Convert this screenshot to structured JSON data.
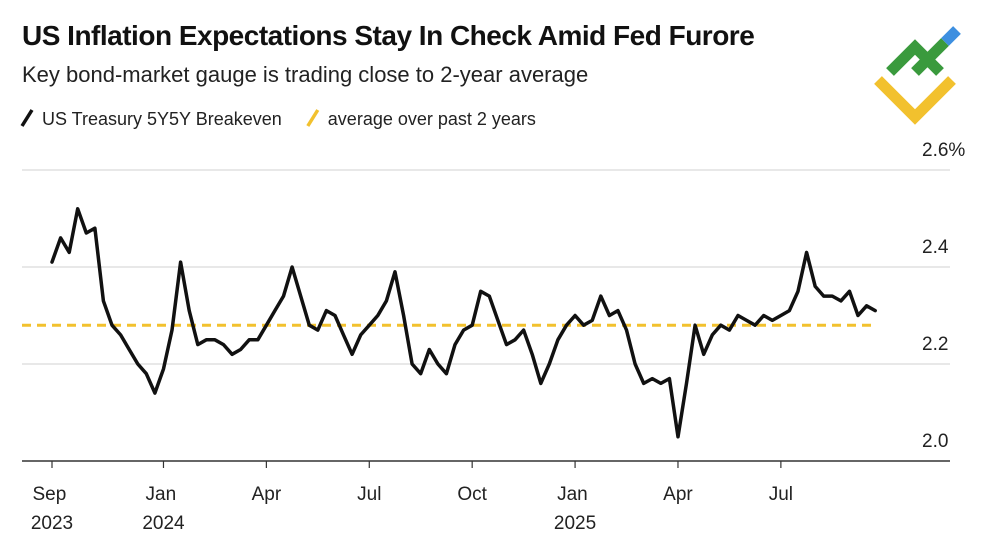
{
  "chart_data": {
    "type": "line",
    "title": "US Inflation Expectations Stay In Check Amid Fed Furore",
    "subtitle": "Key bond-market gauge is trading close to 2-year average",
    "categories": [
      "Sep 2023",
      null,
      null,
      null,
      null,
      null,
      null,
      null,
      null,
      null,
      null,
      null,
      null,
      "Jan 2024",
      null,
      null,
      null,
      null,
      null,
      null,
      null,
      null,
      null,
      null,
      null,
      "Apr",
      null,
      null,
      null,
      null,
      null,
      null,
      null,
      null,
      null,
      null,
      null,
      "Jul",
      null,
      null,
      null,
      null,
      null,
      null,
      null,
      null,
      null,
      null,
      null,
      "Oct",
      null,
      null,
      null,
      null,
      null,
      null,
      null,
      null,
      null,
      null,
      null,
      "Jan 2025",
      null,
      null,
      null,
      null,
      null,
      null,
      null,
      null,
      null,
      null,
      null,
      "Apr",
      null,
      null,
      null,
      null,
      null,
      null,
      null,
      null,
      null,
      null,
      null,
      "Jul",
      null,
      null,
      null,
      null,
      null,
      null,
      null,
      null,
      null,
      null,
      null
    ],
    "series": [
      {
        "name": "US Treasury 5Y5Y Breakeven",
        "color": "#111111",
        "values": [
          2.41,
          2.46,
          2.43,
          2.52,
          2.47,
          2.48,
          2.33,
          2.28,
          2.26,
          2.23,
          2.2,
          2.18,
          2.14,
          2.19,
          2.27,
          2.41,
          2.31,
          2.24,
          2.25,
          2.25,
          2.24,
          2.22,
          2.23,
          2.25,
          2.25,
          2.28,
          2.31,
          2.34,
          2.4,
          2.34,
          2.28,
          2.27,
          2.31,
          2.3,
          2.26,
          2.22,
          2.26,
          2.28,
          2.3,
          2.33,
          2.39,
          2.3,
          2.2,
          2.18,
          2.23,
          2.2,
          2.18,
          2.24,
          2.27,
          2.28,
          2.35,
          2.34,
          2.29,
          2.24,
          2.25,
          2.27,
          2.22,
          2.16,
          2.2,
          2.25,
          2.28,
          2.3,
          2.28,
          2.29,
          2.34,
          2.3,
          2.31,
          2.27,
          2.2,
          2.16,
          2.17,
          2.16,
          2.17,
          2.05,
          2.16,
          2.28,
          2.22,
          2.26,
          2.28,
          2.27,
          2.3,
          2.29,
          2.28,
          2.3,
          2.29,
          2.3,
          2.31,
          2.35,
          2.43,
          2.36,
          2.34,
          2.34,
          2.33,
          2.35,
          2.3,
          2.32,
          2.31
        ]
      },
      {
        "name": "average over past 2 years",
        "color": "#f2c12e",
        "value": 2.28
      }
    ],
    "ylim": [
      2.0,
      2.6
    ],
    "yticks": [
      {
        "value": 2.0,
        "label": "2.0"
      },
      2.2,
      2.4,
      {
        "value": 2.6,
        "label": "2.6%"
      }
    ],
    "grid": true
  }
}
